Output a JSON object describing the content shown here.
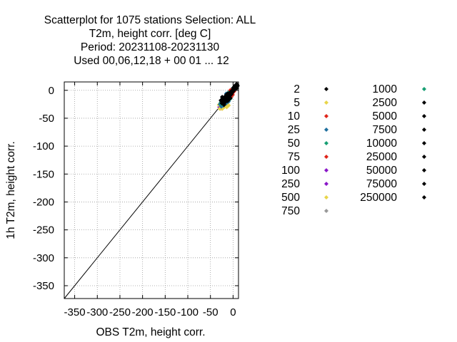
{
  "chart_data": {
    "type": "scatter",
    "title_lines": [
      "Scatterplot for 1075 stations Selection: ALL",
      "T2m, height corr. [deg C]",
      "Period: 20231108-20231130",
      "Used  00,06,12,18  + 00 01 ... 12"
    ],
    "xlabel": "OBS T2m, height corr.",
    "ylabel": "1h T2m, height corr.",
    "xlim": [
      -373,
      12
    ],
    "ylim": [
      -373,
      15
    ],
    "xticks": [
      -350,
      -300,
      -250,
      -200,
      -150,
      -100,
      -50,
      0
    ],
    "xtick_labels": [
      "-350",
      "-300",
      "-250",
      "-200",
      "-150",
      "-100",
      "-50",
      "0"
    ],
    "yticks": [
      0,
      -50,
      -100,
      -150,
      -200,
      -250,
      -300,
      -350
    ],
    "ytick_labels": [
      "0",
      "-50",
      "-100",
      "-150",
      "-200",
      "-250",
      "-300",
      "-350"
    ],
    "grid": true,
    "diagonal": [
      [
        -373,
        -373
      ],
      [
        12,
        12
      ]
    ],
    "legend_placement": "right",
    "legend_col1": [
      {
        "label": "2",
        "color": "#000000"
      },
      {
        "label": "5",
        "color": "#e8d54a"
      },
      {
        "label": "10",
        "color": "#e0241a"
      },
      {
        "label": "25",
        "color": "#1f6f9e"
      },
      {
        "label": "50",
        "color": "#179e73"
      },
      {
        "label": "75",
        "color": "#e0241a"
      },
      {
        "label": "100",
        "color": "#8a17c8"
      },
      {
        "label": "250",
        "color": "#8a17c8"
      },
      {
        "label": "500",
        "color": "#e8d54a"
      },
      {
        "label": "750",
        "color": "#999999"
      }
    ],
    "legend_col2": [
      {
        "label": "1000",
        "color": "#179e73"
      },
      {
        "label": "2500",
        "color": "#000000"
      },
      {
        "label": "5000",
        "color": "#000000"
      },
      {
        "label": "7500",
        "color": "#000000"
      },
      {
        "label": "10000",
        "color": "#000000"
      },
      {
        "label": "25000",
        "color": "#000000"
      },
      {
        "label": "50000",
        "color": "#000000"
      },
      {
        "label": "75000",
        "color": "#000000"
      },
      {
        "label": "250000",
        "color": "#000000"
      }
    ],
    "series": [
      {
        "color": "#8a17c8",
        "points": [
          [
            -30,
            -30
          ],
          [
            -28,
            -24
          ],
          [
            -27,
            -32
          ],
          [
            -25,
            -28
          ],
          [
            -24,
            -20
          ],
          [
            -22,
            -31
          ],
          [
            -21,
            -25
          ],
          [
            -19,
            -29
          ],
          [
            -18,
            -22
          ],
          [
            -16,
            -27
          ],
          [
            -15,
            -18
          ],
          [
            -26,
            -20
          ]
        ]
      },
      {
        "color": "#e8d54a",
        "points": [
          [
            -31,
            -26
          ],
          [
            -29,
            -33
          ],
          [
            -26,
            -26
          ],
          [
            -24,
            -33
          ],
          [
            -23,
            -18
          ],
          [
            -20,
            -30
          ],
          [
            -17,
            -26
          ],
          [
            -14,
            -30
          ],
          [
            -12,
            -22
          ],
          [
            -10,
            -27
          ],
          [
            -20,
            -14
          ],
          [
            -13,
            -10
          ]
        ]
      },
      {
        "color": "#1f6f9e",
        "points": [
          [
            -29,
            -25
          ],
          [
            -26,
            -29
          ],
          [
            -23,
            -23
          ],
          [
            -21,
            -27
          ],
          [
            -18,
            -19
          ],
          [
            -15,
            -23
          ],
          [
            -13,
            -17
          ],
          [
            -10,
            -20
          ],
          [
            -8,
            -14
          ],
          [
            -6,
            -11
          ],
          [
            -15,
            -6
          ],
          [
            -11,
            -8
          ]
        ]
      },
      {
        "color": "#179e73",
        "points": [
          [
            -27,
            -22
          ],
          [
            -24,
            -25
          ],
          [
            -20,
            -24
          ],
          [
            -17,
            -20
          ],
          [
            -14,
            -15
          ],
          [
            -11,
            -18
          ],
          [
            -9,
            -12
          ],
          [
            -6,
            -15
          ],
          [
            -4,
            -8
          ],
          [
            -2,
            -5
          ],
          [
            -8,
            -2
          ],
          [
            -3,
            -10
          ]
        ]
      },
      {
        "color": "#e0241a",
        "points": [
          [
            -24,
            -17
          ],
          [
            -21,
            -21
          ],
          [
            -18,
            -16
          ],
          [
            -15,
            -12
          ],
          [
            -12,
            -16
          ],
          [
            -10,
            -10
          ],
          [
            -7,
            -7
          ],
          [
            -5,
            -12
          ],
          [
            -2,
            -6
          ],
          [
            0,
            -3
          ],
          [
            -6,
            0
          ],
          [
            -1,
            -8
          ],
          [
            2,
            -2
          ],
          [
            4,
            1
          ]
        ]
      },
      {
        "color": "#000000",
        "points": [
          [
            -27,
            -18
          ],
          [
            -25,
            -23
          ],
          [
            -23,
            -15
          ],
          [
            -22,
            -20
          ],
          [
            -20,
            -26
          ],
          [
            -19,
            -17
          ],
          [
            -18,
            -12
          ],
          [
            -17,
            -21
          ],
          [
            -16,
            -15
          ],
          [
            -15,
            -19
          ],
          [
            -14,
            -10
          ],
          [
            -13,
            -14
          ],
          [
            -12,
            -19
          ],
          [
            -11,
            -12
          ],
          [
            -10,
            -6
          ],
          [
            -9,
            -10
          ],
          [
            -8,
            -15
          ],
          [
            -7,
            -5
          ],
          [
            -6,
            -9
          ],
          [
            -5,
            -3
          ],
          [
            -4,
            -7
          ],
          [
            -3,
            -1
          ],
          [
            -2,
            -4
          ],
          [
            -1,
            0
          ],
          [
            0,
            -2
          ],
          [
            1,
            2
          ],
          [
            2,
            0
          ],
          [
            3,
            4
          ],
          [
            4,
            2
          ],
          [
            5,
            6
          ],
          [
            6,
            4
          ],
          [
            7,
            8
          ],
          [
            8,
            6
          ],
          [
            9,
            10
          ],
          [
            10,
            8
          ],
          [
            7,
            3
          ],
          [
            3,
            7
          ],
          [
            -12,
            -6
          ],
          [
            -20,
            -13
          ],
          [
            -15,
            -8
          ],
          [
            -6,
            -14
          ],
          [
            0,
            4
          ],
          [
            5,
            9
          ],
          [
            8,
            11
          ],
          [
            -24,
            -12
          ],
          [
            -10,
            -17
          ]
        ]
      }
    ]
  }
}
